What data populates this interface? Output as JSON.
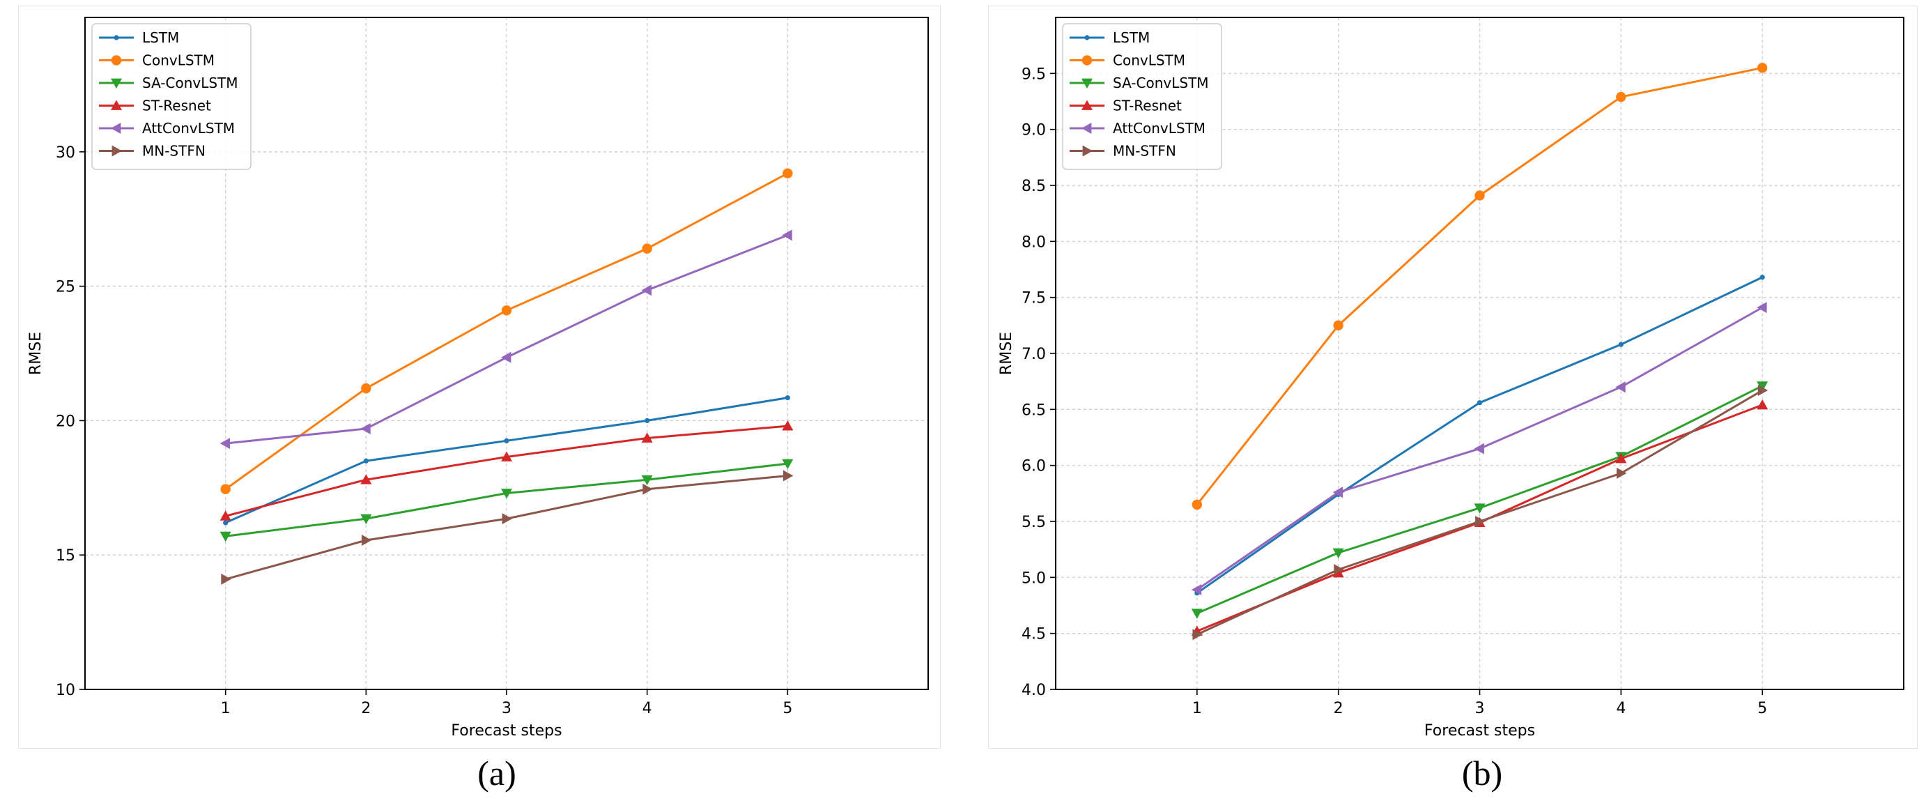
{
  "chart_data": [
    {
      "type": "line",
      "caption": "(a)",
      "title": "",
      "xlabel": "Forecast steps",
      "ylabel": "RMSE",
      "x": [
        1,
        2,
        3,
        4,
        5
      ],
      "xlim": [
        0,
        6
      ],
      "ylim": [
        10,
        35
      ],
      "yticks": [
        10,
        15,
        20,
        25,
        30
      ],
      "ytick_labels": [
        "10",
        "15",
        "20",
        "25",
        "30"
      ],
      "xtick_labels": [
        "1",
        "2",
        "3",
        "4",
        "5"
      ],
      "grid": true,
      "legend_position": "top-left",
      "series": [
        {
          "name": "LSTM",
          "color": "#1f77b4",
          "marker": "dot",
          "values": [
            16.2,
            18.5,
            19.25,
            20.0,
            20.85
          ]
        },
        {
          "name": "ConvLSTM",
          "color": "#ff7f0e",
          "marker": "circle",
          "values": [
            17.45,
            21.2,
            24.1,
            26.4,
            29.2
          ]
        },
        {
          "name": "SA-ConvLSTM",
          "color": "#2ca02c",
          "marker": "triangle-down",
          "values": [
            15.7,
            16.35,
            17.3,
            17.8,
            18.4
          ]
        },
        {
          "name": "ST-Resnet",
          "color": "#d62728",
          "marker": "triangle-up",
          "values": [
            16.45,
            17.8,
            18.65,
            19.35,
            19.8
          ]
        },
        {
          "name": "AttConvLSTM",
          "color": "#9467bd",
          "marker": "triangle-left",
          "values": [
            19.15,
            19.7,
            22.35,
            24.85,
            26.9
          ]
        },
        {
          "name": "MN-STFN",
          "color": "#8c564b",
          "marker": "triangle-right",
          "values": [
            14.1,
            15.55,
            16.35,
            17.45,
            17.95
          ]
        }
      ]
    },
    {
      "type": "line",
      "caption": "(b)",
      "title": "",
      "xlabel": "Forecast steps",
      "ylabel": "RMSE",
      "x": [
        1,
        2,
        3,
        4,
        5
      ],
      "xlim": [
        0,
        6
      ],
      "ylim": [
        4.0,
        10.0
      ],
      "yticks": [
        4.0,
        4.5,
        5.0,
        5.5,
        6.0,
        6.5,
        7.0,
        7.5,
        8.0,
        8.5,
        9.0,
        9.5
      ],
      "ytick_labels": [
        "4.0",
        "4.5",
        "5.0",
        "5.5",
        "6.0",
        "6.5",
        "7.0",
        "7.5",
        "8.0",
        "8.5",
        "9.0",
        "9.5"
      ],
      "xtick_labels": [
        "1",
        "2",
        "3",
        "4",
        "5"
      ],
      "grid": true,
      "legend_position": "top-left",
      "series": [
        {
          "name": "LSTM",
          "color": "#1f77b4",
          "marker": "dot",
          "values": [
            4.86,
            5.74,
            6.56,
            7.08,
            7.68
          ]
        },
        {
          "name": "ConvLSTM",
          "color": "#ff7f0e",
          "marker": "circle",
          "values": [
            5.65,
            7.25,
            8.41,
            9.29,
            9.55
          ]
        },
        {
          "name": "SA-ConvLSTM",
          "color": "#2ca02c",
          "marker": "triangle-down",
          "values": [
            4.68,
            5.22,
            5.62,
            6.08,
            6.71
          ]
        },
        {
          "name": "ST-Resnet",
          "color": "#d62728",
          "marker": "triangle-up",
          "values": [
            4.52,
            5.04,
            5.49,
            6.06,
            6.54
          ]
        },
        {
          "name": "AttConvLSTM",
          "color": "#9467bd",
          "marker": "triangle-left",
          "values": [
            4.89,
            5.76,
            6.15,
            6.7,
            7.41
          ]
        },
        {
          "name": "MN-STFN",
          "color": "#8c564b",
          "marker": "triangle-right",
          "values": [
            4.49,
            5.07,
            5.5,
            5.93,
            6.67
          ]
        }
      ]
    }
  ]
}
